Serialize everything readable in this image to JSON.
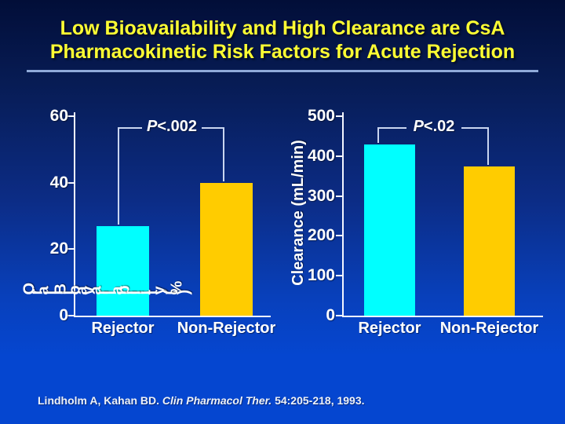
{
  "slide": {
    "title_line1": "Low Bioavailability and High Clearance are CsA",
    "title_line2": "Pharmacokinetic Risk Factors for Acute Rejection",
    "citation": {
      "pre": "Lindholm A, Kahan BD. ",
      "journal": "Clin Pharmacol Ther.",
      "post": " 54:205-218, 1993."
    }
  },
  "colors": {
    "title_text": "#ffff33",
    "rejector_bar": "#00ffff",
    "non_rejector_bar": "#ffcc00",
    "axis_line": "#f3f6ff",
    "bracket_line": "#c9d5ef",
    "title_underline": "#8faad9",
    "background_top": "#020e38",
    "background_bottom": "#0546d0"
  },
  "chart_data": [
    {
      "id": "oral-bioavailability",
      "type": "bar",
      "categories": [
        "Rejector",
        "Non-Rejector"
      ],
      "values": [
        27,
        40
      ],
      "bar_colors": [
        "#00ffff",
        "#ffcc00"
      ],
      "ylabel": "Oral Bioavailability (%)",
      "ylabel_rendered_glitched_per_character": true,
      "ylim": [
        0,
        60
      ],
      "yticks": [
        0,
        20,
        40,
        60
      ],
      "annotation": "P<.002",
      "grid": false,
      "legend": "none"
    },
    {
      "id": "clearance",
      "type": "bar",
      "categories": [
        "Rejector",
        "Non-Rejector"
      ],
      "values": [
        430,
        375
      ],
      "bar_colors": [
        "#00ffff",
        "#ffcc00"
      ],
      "ylabel": "Clearance (mL/min)",
      "ylim": [
        0,
        500
      ],
      "yticks": [
        0,
        100,
        200,
        300,
        400,
        500
      ],
      "annotation": "P<.02",
      "grid": false,
      "legend": "none"
    }
  ]
}
